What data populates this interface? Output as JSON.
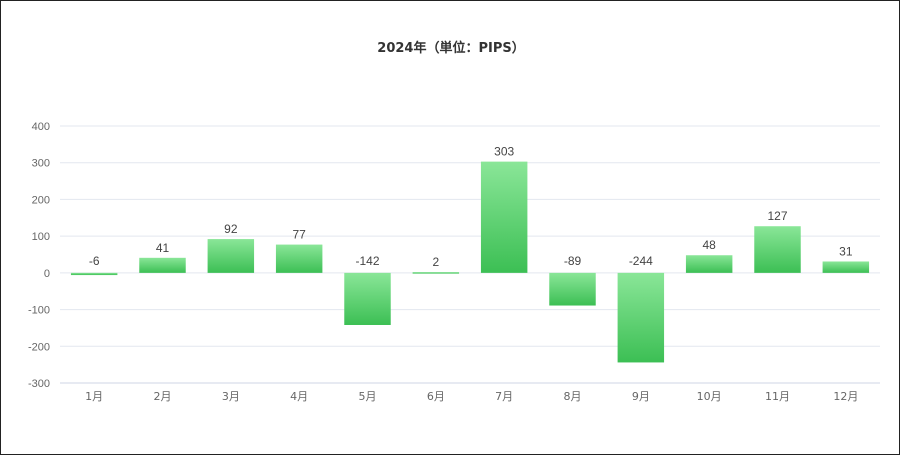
{
  "chart_data": {
    "type": "bar",
    "title": "2024年（単位：PIPS）",
    "categories": [
      "1月",
      "2月",
      "3月",
      "4月",
      "5月",
      "6月",
      "7月",
      "8月",
      "9月",
      "10月",
      "11月",
      "12月"
    ],
    "values": [
      -6,
      41,
      92,
      77,
      -142,
      2,
      303,
      -89,
      -244,
      48,
      127,
      31
    ],
    "ylim": [
      -300,
      400
    ],
    "yticks": [
      400,
      300,
      200,
      100,
      0,
      -100,
      -200,
      -300
    ],
    "grid": true,
    "legend": "none",
    "colors": {
      "bar_top": "#8ae698",
      "bar_bottom": "#3cbf54",
      "grid": "#e3e7ef",
      "axis": "#cfd6e4"
    }
  }
}
